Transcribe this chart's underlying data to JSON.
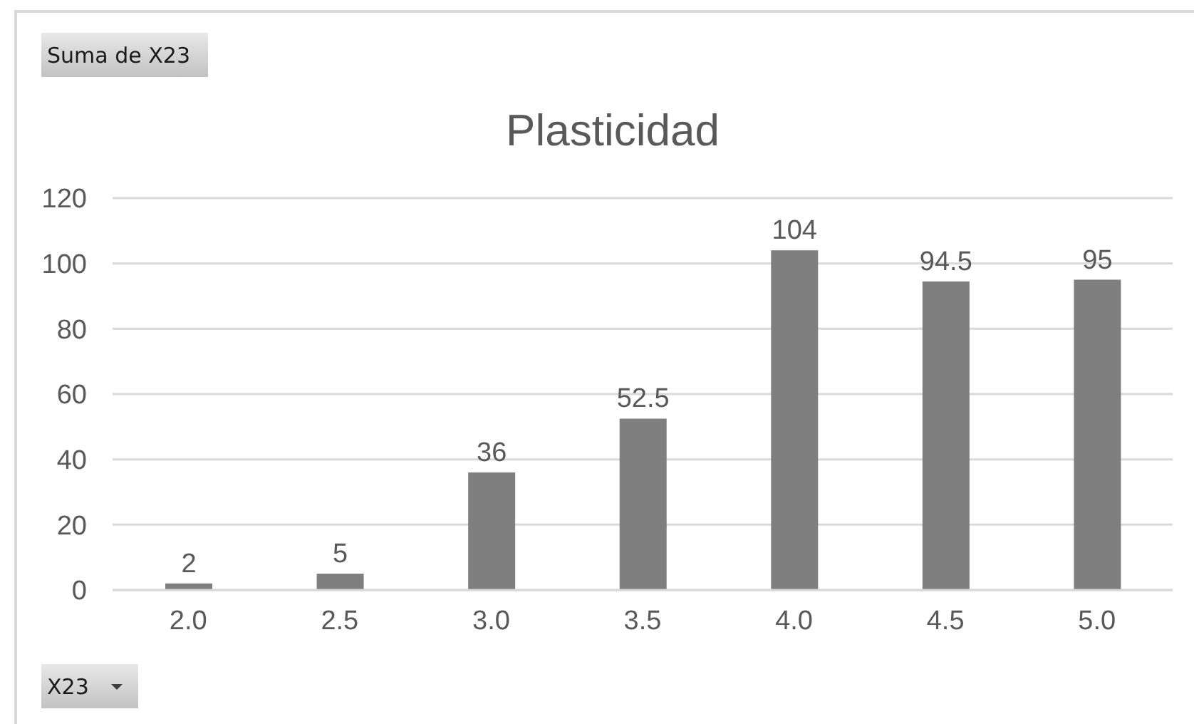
{
  "chart_data": {
    "type": "bar",
    "title": "Plasticidad",
    "xlabel": "X23",
    "annotations": [
      "Suma de X23"
    ],
    "categories": [
      "2.0",
      "2.5",
      "3.0",
      "3.5",
      "4.0",
      "4.5",
      "5.0"
    ],
    "values": [
      2,
      5,
      36,
      52.5,
      104,
      94.5,
      95
    ],
    "color": "#7f7f7f",
    "ylim": [
      0,
      120
    ],
    "yticks": [
      0,
      20,
      40,
      60,
      80,
      100,
      120
    ],
    "grid": "y",
    "data_labels": true
  }
}
